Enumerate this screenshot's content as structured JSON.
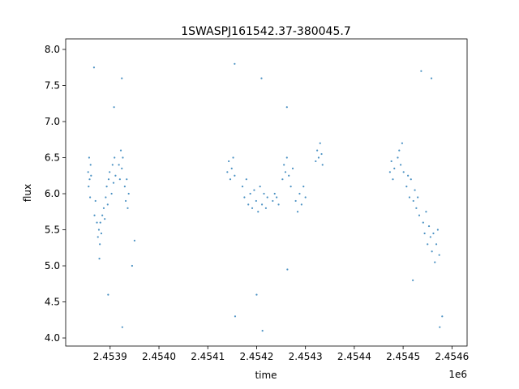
{
  "chart_data": {
    "type": "scatter",
    "title": "1SWASPJ161542.37-380045.7",
    "x_label": "time",
    "y_label": "flux",
    "x_offset_label": "1e6",
    "color": "#1f77b4",
    "x": [
      2453855,
      2453856,
      2453857,
      2453858,
      2453859,
      2453860,
      2453861,
      2453868,
      2453870,
      2453873,
      2453875,
      2453877,
      2453879,
      2453880,
      2453882,
      2453884,
      2453887,
      2453889,
      2453891,
      2453893,
      2453895,
      2453897,
      2453899,
      2453903,
      2453905,
      2453907,
      2453909,
      2453911,
      2453918,
      2453920,
      2453922,
      2453924,
      2453926,
      2453930,
      2453932,
      2453934,
      2453936,
      2453938,
      2453867,
      2453908,
      2453924,
      2453925,
      2453945,
      2453950,
      2453896,
      2453878,
      2454140,
      2454143,
      2454146,
      2454149,
      2454152,
      2454155,
      2454171,
      2454175,
      2454179,
      2454183,
      2454187,
      2454191,
      2454195,
      2454199,
      2454203,
      2454207,
      2454211,
      2454215,
      2454219,
      2454222,
      2454233,
      2454237,
      2454241,
      2454245,
      2454253,
      2454256,
      2454259,
      2454262,
      2454266,
      2454270,
      2454274,
      2454280,
      2454284,
      2454288,
      2454292,
      2454296,
      2454300,
      2454321,
      2454324,
      2454327,
      2454330,
      2454333,
      2454335,
      2454155,
      2454210,
      2454212,
      2454156,
      2454262,
      2454263,
      2454200,
      2454473,
      2454476,
      2454479,
      2454482,
      2454489,
      2454492,
      2454495,
      2454498,
      2454501,
      2454507,
      2454510,
      2454513,
      2454516,
      2454521,
      2454524,
      2454527,
      2454530,
      2454533,
      2454541,
      2454544,
      2454547,
      2454550,
      2454553,
      2454556,
      2454559,
      2454562,
      2454565,
      2454568,
      2454571,
      2454574,
      2454537,
      2454558,
      2454575,
      2454580,
      2454520
    ],
    "values": [
      6.3,
      6.1,
      6.5,
      6.2,
      5.95,
      6.4,
      6.25,
      5.7,
      5.9,
      5.6,
      5.4,
      5.5,
      5.3,
      5.6,
      5.45,
      5.7,
      5.8,
      5.65,
      5.95,
      6.1,
      5.85,
      6.2,
      6.3,
      6.0,
      6.4,
      6.15,
      6.5,
      6.25,
      6.4,
      6.2,
      6.6,
      6.35,
      6.5,
      6.1,
      5.9,
      6.2,
      5.8,
      6.0,
      7.75,
      7.2,
      7.6,
      4.15,
      5.0,
      5.35,
      4.6,
      5.1,
      6.3,
      6.45,
      6.2,
      6.35,
      6.5,
      6.25,
      6.1,
      5.95,
      6.2,
      5.85,
      6.0,
      5.8,
      6.05,
      5.9,
      5.75,
      6.1,
      5.85,
      6.0,
      5.8,
      5.95,
      5.9,
      6.0,
      5.95,
      5.85,
      6.2,
      6.4,
      6.3,
      6.5,
      6.25,
      6.1,
      6.35,
      5.9,
      5.75,
      6.0,
      5.85,
      6.1,
      5.95,
      6.45,
      6.6,
      6.5,
      6.7,
      6.55,
      6.4,
      7.8,
      7.6,
      4.1,
      4.3,
      7.2,
      4.95,
      4.6,
      6.3,
      6.45,
      6.2,
      6.35,
      6.5,
      6.6,
      6.4,
      6.7,
      6.3,
      6.1,
      6.25,
      5.95,
      6.2,
      5.9,
      6.05,
      5.8,
      5.95,
      5.7,
      5.6,
      5.45,
      5.75,
      5.3,
      5.55,
      5.4,
      5.2,
      5.45,
      5.05,
      5.3,
      5.5,
      5.15,
      7.7,
      7.6,
      4.15,
      4.3,
      4.8
    ],
    "xlim": [
      2453809,
      2454631
    ],
    "xticks": [
      {
        "value": 2453900,
        "label": "2.4539"
      },
      {
        "value": 2454000,
        "label": "2.4540"
      },
      {
        "value": 2454100,
        "label": "2.4541"
      },
      {
        "value": 2454200,
        "label": "2.4542"
      },
      {
        "value": 2454300,
        "label": "2.4543"
      },
      {
        "value": 2454400,
        "label": "2.4544"
      },
      {
        "value": 2454500,
        "label": "2.4545"
      },
      {
        "value": 2454600,
        "label": "2.4546"
      }
    ],
    "ylim": [
      3.888,
      8.146
    ],
    "yticks": [
      {
        "value": 4,
        "label": "4.0"
      },
      4.5,
      {
        "value": 5,
        "label": "5.0"
      },
      5.5,
      {
        "value": 6,
        "label": "6.0"
      },
      6.5,
      {
        "value": 7,
        "label": "7.0"
      },
      7.5,
      {
        "value": 8,
        "label": "8.0"
      }
    ]
  }
}
